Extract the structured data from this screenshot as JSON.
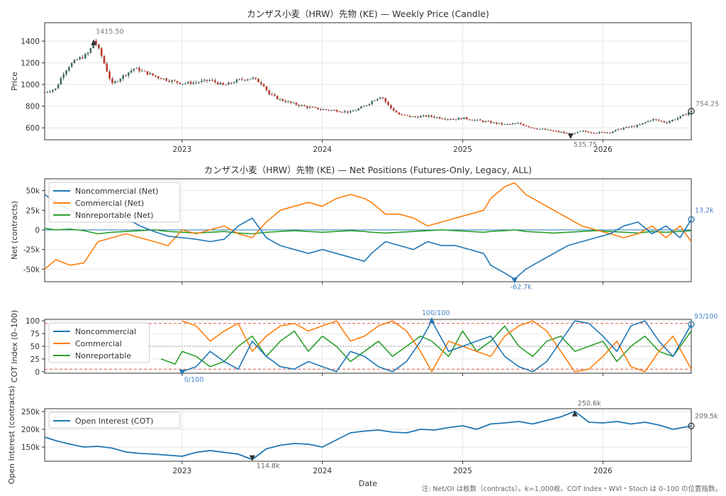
{
  "figure": {
    "footnote": "注: Net/OI は枚数（contracts）。k=1,000枚。COT Index・WVI・Stoch は 0–100 の位置指数。"
  },
  "chart_data": [
    {
      "type": "candlestick",
      "title": "カンザス小麦（HRW）先物 (KE) — Weekly Price (Candle)",
      "ylabel": "Price",
      "ylim": [
        490,
        1570
      ],
      "yticks": [
        600,
        800,
        1000,
        1200,
        1400
      ],
      "xlim": [
        2022.02,
        2026.63
      ],
      "xticks": [
        "2023",
        "2024",
        "2025",
        "2026"
      ],
      "grid": true,
      "colors": {
        "up": "#3d6f63",
        "down": "#c0392b"
      },
      "annotations": [
        {
          "label": "1415.50",
          "x": 2022.37,
          "y": 1415.5
        },
        {
          "label": "535.75",
          "x": 2025.77,
          "y": 535.75
        },
        {
          "label": "754.25",
          "x": 2026.63,
          "y": 754.25
        }
      ],
      "close_series": {
        "x": [
          2022.02,
          2022.1,
          2022.15,
          2022.2,
          2022.25,
          2022.3,
          2022.34,
          2022.37,
          2022.42,
          2022.5,
          2022.58,
          2022.66,
          2022.74,
          2022.82,
          2022.9,
          2023.0,
          2023.1,
          2023.2,
          2023.3,
          2023.4,
          2023.5,
          2023.58,
          2023.62,
          2023.7,
          2023.8,
          2023.9,
          2024.0,
          2024.1,
          2024.2,
          2024.3,
          2024.37,
          2024.42,
          2024.48,
          2024.55,
          2024.65,
          2024.75,
          2024.85,
          2024.95,
          2025.0,
          2025.1,
          2025.2,
          2025.3,
          2025.4,
          2025.5,
          2025.6,
          2025.7,
          2025.77,
          2025.85,
          2025.95,
          2026.05,
          2026.15,
          2026.25,
          2026.35,
          2026.45,
          2026.55,
          2026.63
        ],
        "close": [
          930,
          960,
          1100,
          1180,
          1230,
          1260,
          1300,
          1415.5,
          1280,
          1000,
          1080,
          1150,
          1110,
          1070,
          1040,
          1010,
          1020,
          1040,
          990,
          1040,
          1060,
          1000,
          910,
          860,
          820,
          790,
          770,
          760,
          745,
          800,
          860,
          895,
          790,
          720,
          700,
          710,
          690,
          680,
          690,
          670,
          650,
          630,
          640,
          600,
          580,
          560,
          535.75,
          570,
          555,
          560,
          600,
          620,
          680,
          650,
          700,
          754.25
        ]
      }
    },
    {
      "type": "line",
      "title": "カンザス小麦（HRW）先物 (KE) — Net Positions (Futures-Only, Legacy, ALL)",
      "ylabel": "Net (contracts)",
      "ylim": [
        -66000,
        65000
      ],
      "yticks": [
        "50k",
        "25k",
        "0",
        "-25k",
        "-50k"
      ],
      "ytick_values": [
        50000,
        25000,
        0,
        -25000,
        -50000
      ],
      "legend_position": "top-left",
      "grid": true,
      "annotations": [
        {
          "label": "13.2k",
          "x": 2026.63,
          "y": 13200
        },
        {
          "label": "-62.7k",
          "x": 2025.37,
          "y": -62700
        }
      ],
      "x": [
        2022.02,
        2022.1,
        2022.2,
        2022.3,
        2022.4,
        2022.5,
        2022.6,
        2022.7,
        2022.8,
        2022.9,
        2023.0,
        2023.1,
        2023.2,
        2023.3,
        2023.4,
        2023.5,
        2023.6,
        2023.7,
        2023.8,
        2023.9,
        2024.0,
        2024.1,
        2024.2,
        2024.3,
        2024.35,
        2024.45,
        2024.55,
        2024.65,
        2024.75,
        2024.85,
        2024.95,
        2025.05,
        2025.15,
        2025.2,
        2025.3,
        2025.37,
        2025.45,
        2025.55,
        2025.65,
        2025.75,
        2025.85,
        2025.95,
        2026.05,
        2026.15,
        2026.25,
        2026.35,
        2026.45,
        2026.55,
        2026.63
      ],
      "series": [
        {
          "name": "Noncommercial (Net)",
          "color": "#1f77b4",
          "values": [
            45000,
            35000,
            25000,
            20000,
            40000,
            30000,
            15000,
            5000,
            -2000,
            -8000,
            -10000,
            -12000,
            -15000,
            -12000,
            5000,
            15000,
            -10000,
            -20000,
            -25000,
            -30000,
            -25000,
            -30000,
            -35000,
            -40000,
            -30000,
            -15000,
            -20000,
            -25000,
            -15000,
            -20000,
            -20000,
            -25000,
            -30000,
            -45000,
            -55000,
            -62700,
            -50000,
            -40000,
            -30000,
            -20000,
            -15000,
            -10000,
            -5000,
            5000,
            10000,
            -5000,
            5000,
            -10000,
            13200
          ]
        },
        {
          "name": "Commercial (Net)",
          "color": "#ff7f0e",
          "values": [
            -50000,
            -38000,
            -45000,
            -42000,
            -15000,
            -10000,
            -5000,
            -10000,
            -15000,
            -20000,
            0,
            -5000,
            0,
            5000,
            -5000,
            -10000,
            10000,
            25000,
            30000,
            35000,
            30000,
            40000,
            45000,
            40000,
            35000,
            20000,
            20000,
            15000,
            5000,
            10000,
            15000,
            20000,
            25000,
            40000,
            55000,
            60000,
            45000,
            35000,
            25000,
            15000,
            5000,
            0,
            -5000,
            -10000,
            -5000,
            5000,
            -10000,
            5000,
            -15000
          ]
        },
        {
          "name": "Nonreportable (Net)",
          "color": "#2ca02c",
          "values": [
            2000,
            0,
            1000,
            -1000,
            -5000,
            -3000,
            -2000,
            -1000,
            0,
            -2000,
            -3000,
            -4000,
            -3000,
            -2000,
            -4000,
            -5000,
            -3000,
            -2000,
            -1000,
            -2000,
            -3000,
            -2000,
            -1000,
            -2000,
            -3000,
            -4000,
            -3000,
            -2000,
            -1000,
            0,
            -1000,
            -2000,
            -3000,
            -2000,
            -1000,
            0,
            -2000,
            -3000,
            -4000,
            -3000,
            -2000,
            -1000,
            -2000,
            -3000,
            -4000,
            -2000,
            -3000,
            -2000,
            -1000
          ]
        }
      ]
    },
    {
      "type": "line",
      "title": "",
      "ylabel": "COT Index (0–100)",
      "ylim": [
        -3,
        103
      ],
      "yticks": [
        0,
        25,
        50,
        75,
        100
      ],
      "reference_lines": [
        95,
        50,
        5
      ],
      "legend_position": "top-left",
      "grid": true,
      "annotations": [
        {
          "label": "0/100",
          "x": 2023.0,
          "y": 0
        },
        {
          "label": "100/100",
          "x": 2024.78,
          "y": 100
        },
        {
          "label": "93/100",
          "x": 2026.63,
          "y": 93
        }
      ],
      "x": [
        2022.85,
        2022.95,
        2023.0,
        2023.1,
        2023.2,
        2023.3,
        2023.4,
        2023.5,
        2023.6,
        2023.7,
        2023.8,
        2023.9,
        2024.0,
        2024.1,
        2024.2,
        2024.3,
        2024.4,
        2024.5,
        2024.6,
        2024.7,
        2024.78,
        2024.9,
        2025.0,
        2025.1,
        2025.2,
        2025.3,
        2025.4,
        2025.5,
        2025.6,
        2025.7,
        2025.8,
        2025.9,
        2026.0,
        2026.1,
        2026.2,
        2026.3,
        2026.4,
        2026.5,
        2026.63
      ],
      "series": [
        {
          "name": "Noncommercial",
          "color": "#1f77b4",
          "values": [
            null,
            null,
            0,
            10,
            40,
            20,
            5,
            60,
            30,
            10,
            5,
            20,
            10,
            0,
            40,
            30,
            10,
            0,
            20,
            60,
            100,
            40,
            50,
            60,
            70,
            30,
            10,
            0,
            20,
            60,
            100,
            95,
            70,
            40,
            90,
            100,
            60,
            30,
            93
          ]
        },
        {
          "name": "Commercial",
          "color": "#ff7f0e",
          "values": [
            null,
            null,
            100,
            90,
            60,
            80,
            95,
            40,
            70,
            90,
            95,
            80,
            90,
            100,
            60,
            70,
            90,
            100,
            80,
            40,
            0,
            60,
            50,
            40,
            30,
            70,
            90,
            100,
            80,
            40,
            0,
            5,
            30,
            60,
            10,
            0,
            40,
            70,
            5
          ]
        },
        {
          "name": "Nonreportable",
          "color": "#2ca02c",
          "values": [
            25,
            15,
            40,
            30,
            10,
            20,
            50,
            70,
            30,
            60,
            80,
            40,
            70,
            50,
            20,
            40,
            60,
            30,
            50,
            70,
            60,
            30,
            80,
            40,
            60,
            90,
            50,
            30,
            60,
            70,
            40,
            50,
            60,
            20,
            50,
            70,
            40,
            30,
            80
          ]
        }
      ]
    },
    {
      "type": "line",
      "title": "",
      "ylabel": "Open Interest (contracts)",
      "xlabel": "Date",
      "ylim": [
        110000,
        258000
      ],
      "yticks": [
        "250k",
        "200k",
        "150k"
      ],
      "ytick_values": [
        250000,
        200000,
        150000
      ],
      "legend_position": "top-left",
      "grid": true,
      "annotations": [
        {
          "label": "250.6k",
          "x": 2025.8,
          "y": 250600
        },
        {
          "label": "114.8k",
          "x": 2023.5,
          "y": 114800
        },
        {
          "label": "209.5k",
          "x": 2026.63,
          "y": 209500
        }
      ],
      "x": [
        2022.02,
        2022.1,
        2022.2,
        2022.3,
        2022.4,
        2022.5,
        2022.6,
        2022.7,
        2022.8,
        2022.9,
        2023.0,
        2023.1,
        2023.2,
        2023.3,
        2023.4,
        2023.5,
        2023.6,
        2023.7,
        2023.8,
        2023.9,
        2024.0,
        2024.1,
        2024.2,
        2024.3,
        2024.4,
        2024.5,
        2024.6,
        2024.7,
        2024.8,
        2024.9,
        2025.0,
        2025.1,
        2025.2,
        2025.3,
        2025.4,
        2025.5,
        2025.6,
        2025.7,
        2025.8,
        2025.9,
        2026.0,
        2026.1,
        2026.2,
        2026.3,
        2026.4,
        2026.5,
        2026.63
      ],
      "series": [
        {
          "name": "Open Interest (COT)",
          "color": "#1f77b4",
          "values": [
            178000,
            168000,
            158000,
            150000,
            152000,
            147000,
            136000,
            132000,
            130000,
            127000,
            124000,
            135000,
            140000,
            135000,
            130000,
            114800,
            145000,
            155000,
            160000,
            158000,
            150000,
            170000,
            190000,
            195000,
            198000,
            192000,
            190000,
            200000,
            198000,
            205000,
            210000,
            200000,
            215000,
            218000,
            222000,
            215000,
            225000,
            235000,
            250600,
            220000,
            218000,
            222000,
            215000,
            220000,
            212000,
            200000,
            209500
          ]
        }
      ]
    }
  ]
}
